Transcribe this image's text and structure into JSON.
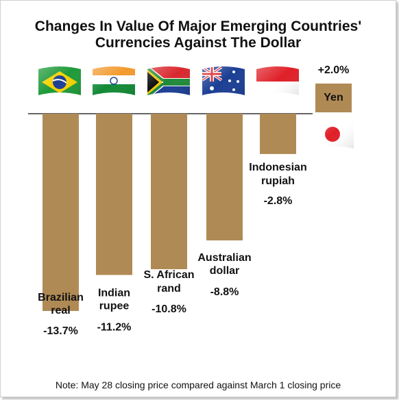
{
  "chart_data": {
    "type": "bar",
    "title_line1": "Changes In Value Of Major Emerging Countries'",
    "title_line2": "Currencies Against The Dollar",
    "note": "Note: May 28 closing price compared against March 1 closing price",
    "bar_color": "#b08a55",
    "label_bg": "#ffffff",
    "categories": [
      {
        "name_line1": "Brazilian",
        "name_line2": "real",
        "value": -13.7,
        "value_label": "-13.7%",
        "flag": "brazil-flag-icon"
      },
      {
        "name_line1": "Indian",
        "name_line2": "rupee",
        "value": -11.2,
        "value_label": "-11.2%",
        "flag": "india-flag-icon"
      },
      {
        "name_line1": "S. African",
        "name_line2": "rand",
        "value": -10.8,
        "value_label": "-10.8%",
        "flag": "south-africa-flag-icon"
      },
      {
        "name_line1": "Australian",
        "name_line2": "dollar",
        "value": -8.8,
        "value_label": "-8.8%",
        "flag": "australia-flag-icon"
      },
      {
        "name_line1": "Indonesian",
        "name_line2": "rupiah",
        "value": -2.8,
        "value_label": "-2.8%",
        "flag": "indonesia-flag-icon"
      },
      {
        "name_line1": "Yen",
        "name_line2": "",
        "value": 2.0,
        "value_label": "+2.0%",
        "flag": "japan-flag-icon"
      }
    ]
  }
}
